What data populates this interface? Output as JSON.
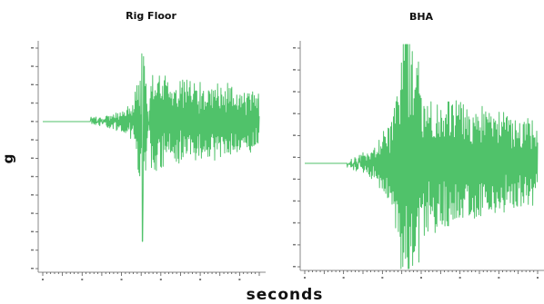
{
  "figure": {
    "ylabel": "g",
    "xlabel": "seconds"
  },
  "chart_data": [
    {
      "type": "line",
      "title": "Rig Floor",
      "xlabel": "seconds",
      "ylabel": "g",
      "color": "#3dbb5a",
      "grid": false,
      "series": [
        {
          "x": [
            0,
            0.15,
            0.25,
            0.35,
            0.42,
            0.45,
            0.46,
            0.5,
            0.6,
            0.75,
            0.85,
            0.95,
            1.0
          ],
          "y": [
            0,
            0,
            0.02,
            0.05,
            0.15,
            0.55,
            -1.0,
            0.4,
            0.35,
            0.3,
            0.3,
            0.25,
            0.2
          ]
        }
      ]
    },
    {
      "type": "line",
      "title": "BHA",
      "xlabel": "seconds",
      "ylabel": "g",
      "color": "#3dbb5a",
      "grid": false,
      "series": [
        {
          "x": [
            0,
            0.15,
            0.2,
            0.3,
            0.38,
            0.42,
            0.43,
            0.5,
            0.6,
            0.75,
            0.85,
            0.95,
            1.0
          ],
          "y": [
            0,
            0,
            0.01,
            0.08,
            0.3,
            0.65,
            0.95,
            0.45,
            0.4,
            0.35,
            0.3,
            0.28,
            0.25
          ]
        }
      ]
    }
  ]
}
